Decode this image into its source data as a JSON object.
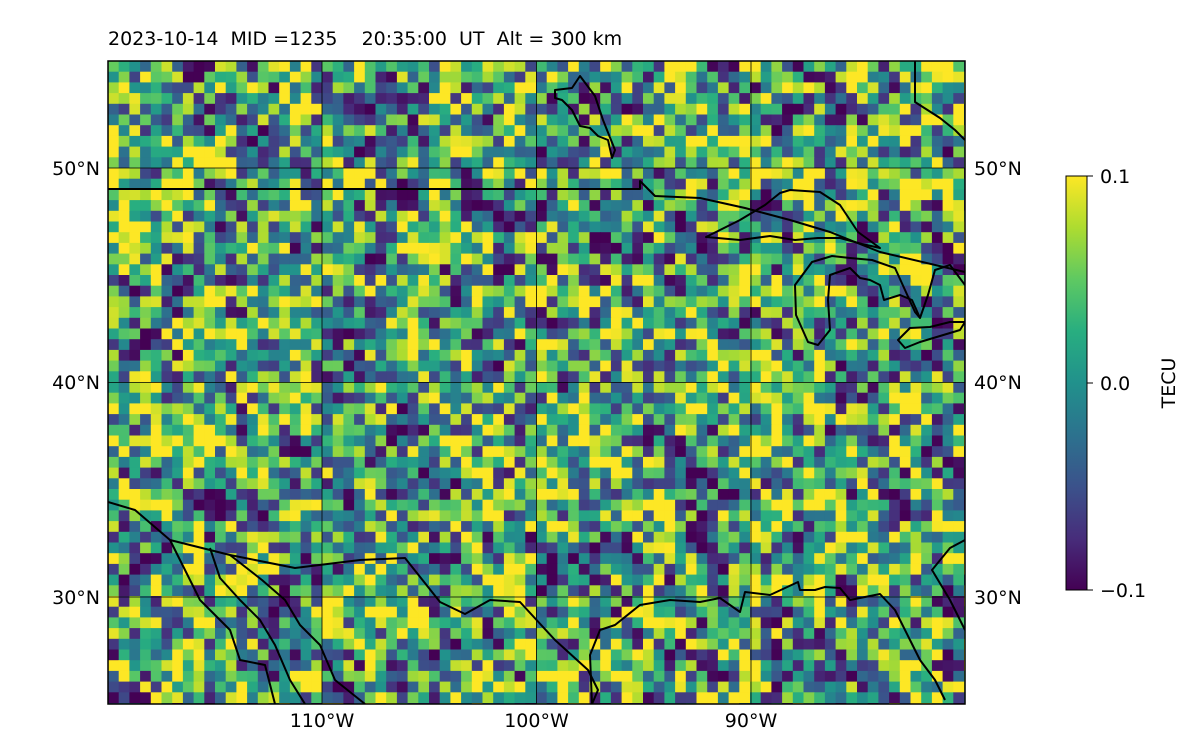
{
  "title": "2023-10-14  MID =1235    20:35:00  UT  Alt = 300 km",
  "map": {
    "lon_range": [
      -120,
      -80
    ],
    "lat_range": [
      25,
      55
    ],
    "lon_ticks": [
      -110,
      -100,
      -90
    ],
    "lon_tick_labels": [
      "110°W",
      "100°W",
      "90°W"
    ],
    "lat_ticks": [
      30,
      40,
      50
    ],
    "lat_tick_labels": [
      "30°N",
      "40°N",
      "50°N"
    ],
    "gridlines": true,
    "colormap": "viridis",
    "colors": {
      "low": "#440154",
      "mid": "#21918c",
      "high": "#fde725",
      "coastline": "#000000"
    }
  },
  "colorbar": {
    "label": "TECU",
    "min": -0.1,
    "max": 0.1,
    "ticks": [
      -0.1,
      0.0,
      0.1
    ],
    "tick_labels": [
      "−0.1",
      "0.0",
      "0.1"
    ]
  }
}
